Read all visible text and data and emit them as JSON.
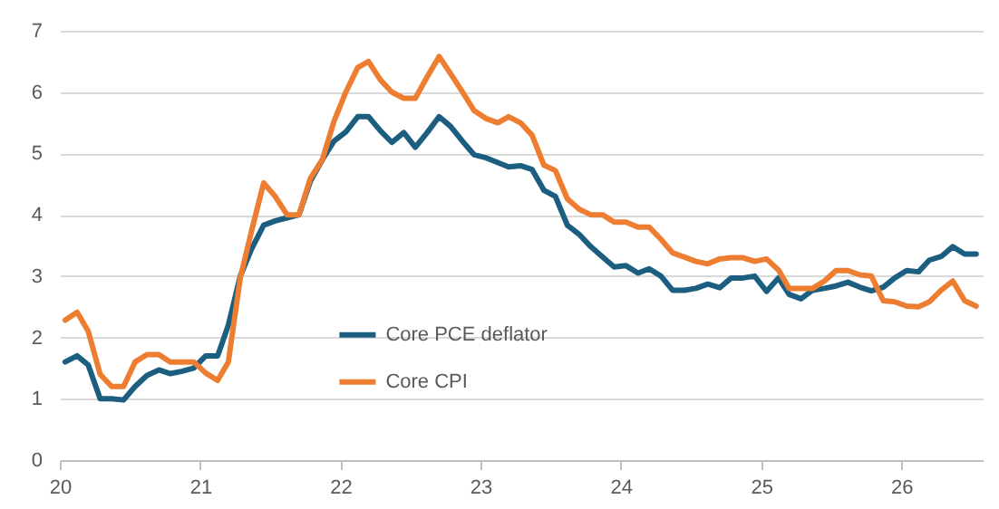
{
  "chart_data": {
    "type": "line",
    "x": [
      "2020-01-15",
      "2020-02-15",
      "2020-03-15",
      "2020-04-15",
      "2020-05-15",
      "2020-06-15",
      "2020-07-15",
      "2020-08-15",
      "2020-09-15",
      "2020-10-15",
      "2020-11-15",
      "2020-12-15",
      "2021-01-15",
      "2021-02-15",
      "2021-03-15",
      "2021-04-15",
      "2021-05-15",
      "2021-06-15",
      "2021-07-15",
      "2021-08-15",
      "2021-09-15",
      "2021-10-15",
      "2021-11-15",
      "2021-12-15",
      "2022-01-15",
      "2022-02-15",
      "2022-03-15",
      "2022-04-15",
      "2022-05-15",
      "2022-06-15",
      "2022-07-15",
      "2022-08-15",
      "2022-09-15",
      "2022-10-15",
      "2022-11-15",
      "2022-12-15",
      "2023-01-15",
      "2023-02-15",
      "2023-03-15",
      "2023-04-15",
      "2023-05-15",
      "2023-06-15",
      "2023-07-15",
      "2023-08-15",
      "2023-09-15",
      "2023-10-15",
      "2023-11-15",
      "2023-12-15",
      "2024-01-15",
      "2024-02-15",
      "2024-03-15",
      "2024-04-15",
      "2024-05-15",
      "2024-06-15",
      "2024-07-15",
      "2024-08-15",
      "2024-09-15",
      "2024-10-15",
      "2024-11-15",
      "2024-12-15",
      "2025-01-15",
      "2025-02-15",
      "2025-03-15",
      "2025-04-15",
      "2025-05-15",
      "2025-06-15",
      "2025-07-15",
      "2025-08-15",
      "2025-09-15",
      "2025-10-15",
      "2025-11-15",
      "2025-12-15",
      "2026-01-15",
      "2026-02-15",
      "2026-03-15",
      "2026-04-15",
      "2026-05-15",
      "2026-06-15",
      "2026-07-15"
    ],
    "series": [
      {
        "name": "Core PCE deflator",
        "color": "#1b5e80",
        "values": [
          1.6,
          1.7,
          1.55,
          1.0,
          1.0,
          0.98,
          1.2,
          1.38,
          1.47,
          1.41,
          1.45,
          1.5,
          1.7,
          1.7,
          2.2,
          3.0,
          3.45,
          3.83,
          3.9,
          3.95,
          4.0,
          4.55,
          4.9,
          5.2,
          5.35,
          5.6,
          5.6,
          5.37,
          5.18,
          5.34,
          5.1,
          5.34,
          5.6,
          5.44,
          5.2,
          4.98,
          4.93,
          4.85,
          4.78,
          4.8,
          4.74,
          4.4,
          4.3,
          3.83,
          3.68,
          3.48,
          3.31,
          3.15,
          3.17,
          3.05,
          3.12,
          3.0,
          2.77,
          2.77,
          2.8,
          2.87,
          2.81,
          2.97,
          2.97,
          3.0,
          2.75,
          2.97,
          2.7,
          2.63,
          2.77,
          2.8,
          2.84,
          2.9,
          2.82,
          2.76,
          2.82,
          2.97,
          3.09,
          3.07,
          3.26,
          3.32,
          3.48,
          3.36,
          3.36
        ]
      },
      {
        "name": "Core CPI",
        "color": "#ed7d31",
        "values": [
          2.28,
          2.41,
          2.1,
          1.4,
          1.2,
          1.2,
          1.6,
          1.72,
          1.72,
          1.6,
          1.6,
          1.6,
          1.42,
          1.3,
          1.6,
          2.97,
          3.75,
          4.52,
          4.3,
          4.0,
          4.0,
          4.6,
          4.9,
          5.52,
          6.0,
          6.4,
          6.5,
          6.2,
          6.0,
          5.9,
          5.9,
          6.25,
          6.58,
          6.3,
          6.0,
          5.7,
          5.57,
          5.5,
          5.6,
          5.5,
          5.3,
          4.81,
          4.72,
          4.26,
          4.09,
          4.0,
          4.0,
          3.88,
          3.88,
          3.8,
          3.8,
          3.6,
          3.38,
          3.31,
          3.24,
          3.2,
          3.28,
          3.3,
          3.3,
          3.24,
          3.28,
          3.1,
          2.8,
          2.8,
          2.8,
          2.92,
          3.09,
          3.09,
          3.02,
          3.0,
          2.6,
          2.58,
          2.51,
          2.5,
          2.58,
          2.77,
          2.92,
          2.6,
          2.51
        ]
      }
    ],
    "xlim": [
      "2020-01-01",
      "2026-08-01"
    ],
    "xticks": [
      {
        "value": "2020-01-01",
        "label": "20"
      },
      {
        "value": "2021-01-01",
        "label": "21"
      },
      {
        "value": "2022-01-01",
        "label": "22"
      },
      {
        "value": "2023-01-01",
        "label": "23"
      },
      {
        "value": "2024-01-01",
        "label": "24"
      },
      {
        "value": "2025-01-01",
        "label": "25"
      },
      {
        "value": "2026-01-01",
        "label": "26"
      }
    ],
    "ylim": [
      0,
      7
    ],
    "yticks": [
      0,
      1,
      2,
      3,
      4,
      5,
      6,
      7
    ],
    "grid": "y",
    "legend": "center left",
    "marker": "none",
    "line_style": "solid"
  }
}
